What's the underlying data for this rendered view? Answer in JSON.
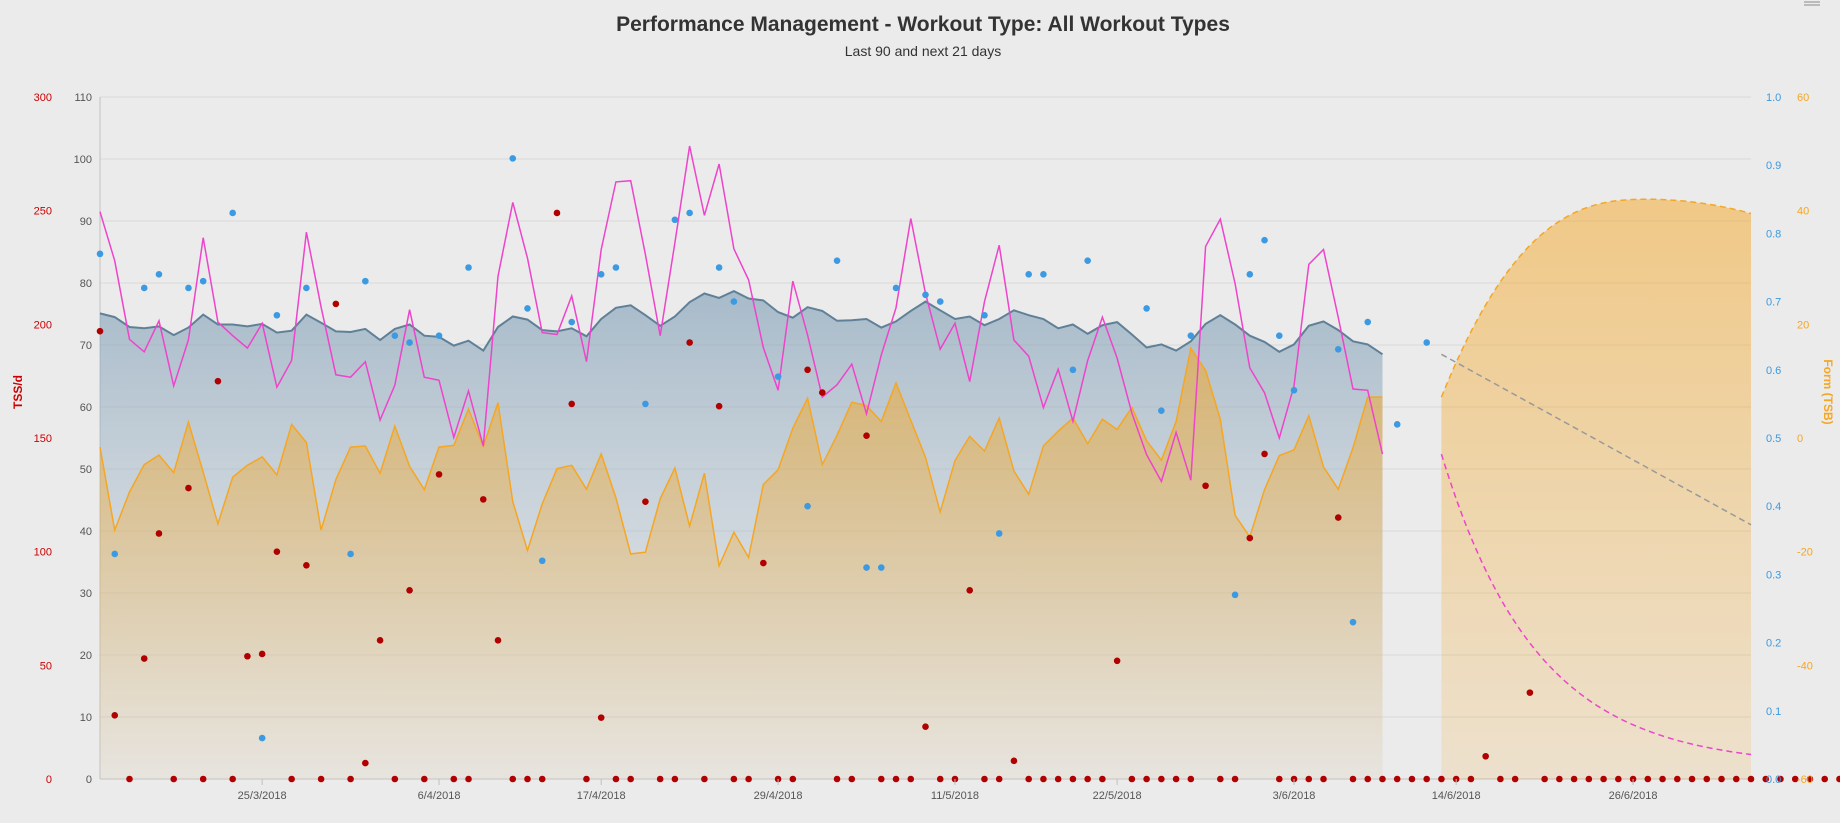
{
  "chart_data": {
    "type": "line",
    "title": "Performance Management - Workout Type: All Workout Types",
    "subtitle": "Last 90 and next 21 days",
    "x_range": [
      "2018-03-14",
      "2018-07-04"
    ],
    "x_ticks": [
      "25/3/2018",
      "6/4/2018",
      "17/4/2018",
      "29/4/2018",
      "11/5/2018",
      "22/5/2018",
      "3/6/2018",
      "14/6/2018",
      "26/6/2018"
    ],
    "y_axes": {
      "tss": {
        "title": "TSS/d",
        "range": [
          0,
          300
        ],
        "ticks": [
          "300",
          "250",
          "200",
          "150",
          "100",
          "50",
          "0"
        ],
        "color": "#cc0000"
      },
      "main": {
        "title": "",
        "range": [
          0,
          110
        ],
        "ticks": [
          "110",
          "100",
          "90",
          "80",
          "70",
          "60",
          "50",
          "40",
          "30",
          "20",
          "10",
          "0"
        ],
        "color": "#555555"
      },
      "if": {
        "title": "",
        "range": [
          0,
          1
        ],
        "ticks": [
          "1.0",
          "0.9",
          "0.8",
          "0.7",
          "0.6",
          "0.5",
          "0.4",
          "0.3",
          "0.2",
          "0.1",
          "0.0"
        ],
        "color": "#3b9ae1"
      },
      "form": {
        "title": "Form (TSB)",
        "range": [
          -60,
          60
        ],
        "ticks": [
          "60",
          "40",
          "20",
          "0",
          "-20",
          "-40",
          "-60"
        ],
        "color": "#f5a623"
      }
    },
    "colors": {
      "fitness": "#5f8097",
      "fatigue": "#ee44cc",
      "form": "#f5a623",
      "tss": "#b00000",
      "intensity": "#3b9ae1",
      "projection": "#999999"
    },
    "series": [
      {
        "key": "fitness",
        "axis": "main",
        "values": [
          75.1,
          74.5,
          72.9,
          72.7,
          73.0,
          71.6,
          72.8,
          74.9,
          73.3,
          73.3,
          73.0,
          73.4,
          72.0,
          72.3,
          74.9,
          73.6,
          72.2,
          72.1,
          72.6,
          70.8,
          72.6,
          73.3,
          71.5,
          71.3,
          69.9,
          70.7,
          69.1,
          72.9,
          74.6,
          74.1,
          72.4,
          72.2,
          72.7,
          71.4,
          74.2,
          76.0,
          76.4,
          74.8,
          73.1,
          74.6,
          76.9,
          78.3,
          77.6,
          78.7,
          77.5,
          77.2,
          75.3,
          74.4,
          76.1,
          75.5,
          73.9,
          74.0,
          74.2,
          72.8,
          73.8,
          75.5,
          77.0,
          75.6,
          74.2,
          74.6,
          73.2,
          74.2,
          75.6,
          74.8,
          74.2,
          72.7,
          73.3,
          71.8,
          73.2,
          73.7,
          71.7,
          69.6,
          70.1,
          69.1,
          70.6,
          73.4,
          74.8,
          73.3,
          71.5,
          70.5,
          68.9,
          70.1,
          73.1,
          73.8,
          72.4,
          70.6,
          70.1,
          68.5
        ]
      },
      {
        "key": "fatigue",
        "axis": "main",
        "values": [
          91.5,
          83.6,
          70.9,
          68.9,
          73.9,
          63.4,
          70.8,
          87.3,
          73.7,
          71.5,
          69.5,
          73.5,
          63.2,
          67.5,
          88.2,
          76.1,
          65.2,
          64.8,
          67.3,
          57.9,
          63.5,
          75.7,
          64.8,
          64.3,
          55.1,
          62.6,
          53.7,
          81.1,
          93.0,
          84.0,
          72.0,
          71.7,
          77.9,
          67.3,
          85.4,
          96.3,
          96.5,
          84.6,
          71.5,
          86.5,
          102.1,
          90.9,
          99.2,
          85.5,
          80.5,
          69.6,
          62.7,
          80.3,
          71.6,
          61.6,
          63.6,
          66.9,
          58.9,
          68.4,
          76.0,
          90.4,
          78.3,
          69.3,
          73.5,
          64.1,
          77.0,
          86.1,
          70.8,
          68.2,
          59.9,
          66.1,
          57.7,
          67.5,
          74.5,
          67.9,
          59.0,
          52.3,
          48.0,
          55.9,
          48.2,
          85.9,
          90.3,
          79.9,
          66.3,
          62.3,
          55.0,
          63.4,
          83.0,
          85.4,
          74.4,
          62.9,
          62.7,
          52.4
        ]
      },
      {
        "key": "form",
        "axis": "form",
        "values": [
          -1.6,
          -16.2,
          -9.5,
          -4.7,
          -3.0,
          -6.1,
          2.8,
          -6.0,
          -15.1,
          -6.9,
          -4.8,
          -3.3,
          -6.5,
          2.4,
          -0.8,
          -16.2,
          -7.3,
          -1.6,
          -1.4,
          -6.2,
          2.1,
          -5.0,
          -9.1,
          -1.6,
          -1.3,
          5.1,
          -1.5,
          6.2,
          -11.2,
          -19.8,
          -11.6,
          -5.4,
          -4.8,
          -9.0,
          -2.8,
          -10.5,
          -20.4,
          -20.1,
          -10.7,
          -5.3,
          -15.5,
          -6.2,
          -22.5,
          -16.6,
          -21.0,
          -8.2,
          -5.6,
          1.7,
          7.0,
          -4.7,
          0.5,
          6.3,
          5.7,
          2.9,
          9.7,
          3.1,
          -3.4,
          -13.0,
          -4.0,
          0.3,
          -2.3,
          3.5,
          -5.8,
          -9.9,
          -1.4,
          1.2,
          3.5,
          -1.0,
          3.3,
          1.5,
          5.4,
          -0.5,
          -3.9,
          2.9,
          15.8,
          11.9,
          3.3,
          -13.6,
          -17.4,
          -9.1,
          -3.1,
          -2.1,
          3.9,
          -5.1,
          -9.0,
          -1.7,
          7.2,
          7.2
        ]
      },
      {
        "key": "tss",
        "axis": "tss",
        "values": [
          197,
          28,
          0,
          53,
          108,
          0,
          128,
          0,
          175,
          0,
          54,
          55,
          100,
          0,
          94,
          0,
          209,
          0,
          7,
          61,
          0,
          83,
          0,
          134,
          0,
          0,
          123,
          61,
          0,
          0,
          0,
          249,
          165,
          0,
          27,
          0,
          0,
          122,
          0,
          0,
          192,
          0,
          164,
          0,
          0,
          95,
          0,
          0,
          180,
          170,
          0,
          0,
          151,
          0,
          0,
          0,
          23,
          0,
          0,
          83,
          0,
          0,
          8,
          0,
          0,
          0,
          0,
          0,
          0,
          52,
          0,
          0,
          0,
          0,
          0,
          129,
          0,
          0,
          106,
          143,
          0,
          0,
          0,
          0,
          115,
          0,
          0,
          0,
          0,
          0,
          0,
          0,
          0,
          0,
          10,
          0,
          0,
          38,
          0,
          0,
          0,
          0,
          0,
          0,
          0,
          0,
          0,
          0,
          0,
          0,
          0,
          0,
          0,
          0,
          0,
          0,
          0,
          0,
          0,
          0,
          0,
          0,
          0
        ],
        "note_x": "daily, starting 2018-03-14"
      },
      {
        "key": "intensity",
        "axis": "if",
        "values": [
          0.77,
          0.33,
          null,
          0.72,
          0.74,
          null,
          0.72,
          0.73,
          null,
          0.83,
          null,
          0.06,
          0.68,
          null,
          0.72,
          null,
          null,
          0.33,
          0.73,
          null,
          0.65,
          0.64,
          null,
          0.65,
          null,
          0.75,
          null,
          null,
          0.91,
          0.69,
          0.32,
          null,
          0.67,
          null,
          0.74,
          0.75,
          null,
          0.55,
          null,
          0.82,
          0.83,
          null,
          0.75,
          0.7,
          null,
          null,
          0.59,
          null,
          0.4,
          null,
          0.76,
          null,
          0.31,
          0.31,
          0.72,
          null,
          0.71,
          0.7,
          null,
          null,
          0.68,
          0.36,
          null,
          0.74,
          0.74,
          null,
          0.6,
          0.76,
          null,
          null,
          null,
          0.69,
          0.54,
          null,
          0.65,
          null,
          null,
          0.27,
          0.74,
          0.79,
          0.65,
          0.57,
          null,
          null,
          0.63,
          0.23,
          0.67,
          null,
          0.52,
          null,
          0.64
        ],
        "note_x": "daily, starting 2018-03-14"
      },
      {
        "key": "fitness_projection",
        "axis": "main",
        "x": [
          "2018-06-13",
          "2018-07-04"
        ],
        "values": [
          68.5,
          41.0
        ]
      },
      {
        "key": "fatigue_projection",
        "axis": "main",
        "x": [
          "2018-06-13",
          "2018-07-04"
        ],
        "values": [
          52.4,
          2.0
        ]
      },
      {
        "key": "form_projection",
        "axis": "form",
        "x": [
          "2018-06-13",
          "2018-07-04"
        ],
        "values": [
          7.2,
          39.5
        ],
        "peak": [
          "2018-06-27",
          42.0
        ]
      }
    ],
    "grid": true,
    "legend": "none"
  }
}
